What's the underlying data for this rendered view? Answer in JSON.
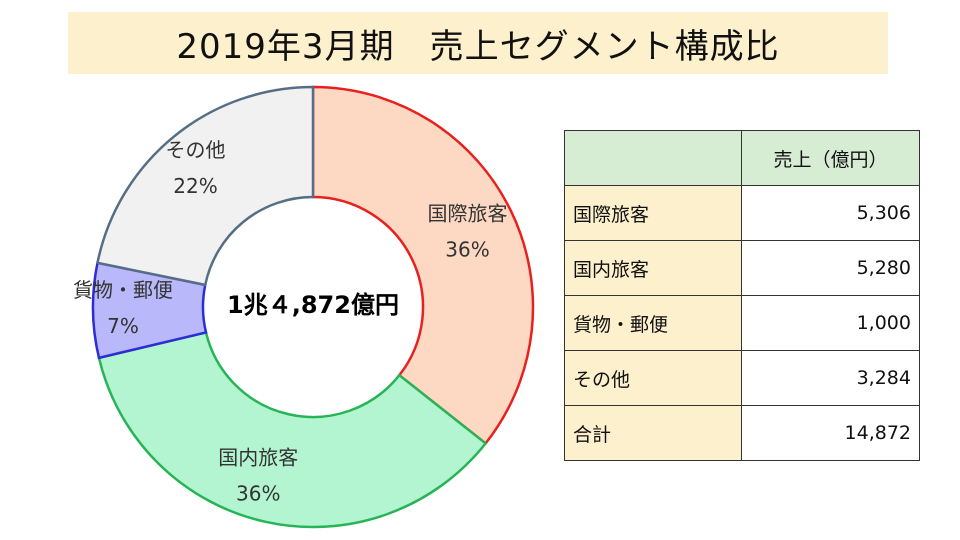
{
  "title": "2019年3月期　売上セグメント構成比",
  "chart_data": {
    "type": "pie",
    "title": "2019年3月期　売上セグメント構成比",
    "center_label": "1兆４,872億円",
    "slices": [
      {
        "label": "国際旅客",
        "percent": 36,
        "percent_label": "36%",
        "fill": "#fdd9c4",
        "stroke": "#e8201e"
      },
      {
        "label": "国内旅客",
        "percent": 36,
        "percent_label": "36%",
        "fill": "#b3f5d0",
        "stroke": "#27b456"
      },
      {
        "label": "貨物・郵便",
        "percent": 7,
        "percent_label": "7%",
        "fill": "#b9b8fb",
        "stroke": "#2c2dd9"
      },
      {
        "label": "その他",
        "percent": 22,
        "percent_label": "22%",
        "fill": "#f1f1f1",
        "stroke": "#556e86"
      }
    ]
  },
  "table": {
    "header_value": "売上（億円）",
    "rows": [
      {
        "label": "国際旅客",
        "value": "5,306"
      },
      {
        "label": "国内旅客",
        "value": "5,280"
      },
      {
        "label": "貨物・郵便",
        "value": "1,000"
      },
      {
        "label": "その他",
        "value": "3,284"
      },
      {
        "label": "合計",
        "value": "14,872"
      }
    ]
  },
  "colors": {
    "title_background": "#fdf0cc",
    "table_header_background": "#d6ecd3",
    "table_label_background": "#fdf0cc"
  }
}
